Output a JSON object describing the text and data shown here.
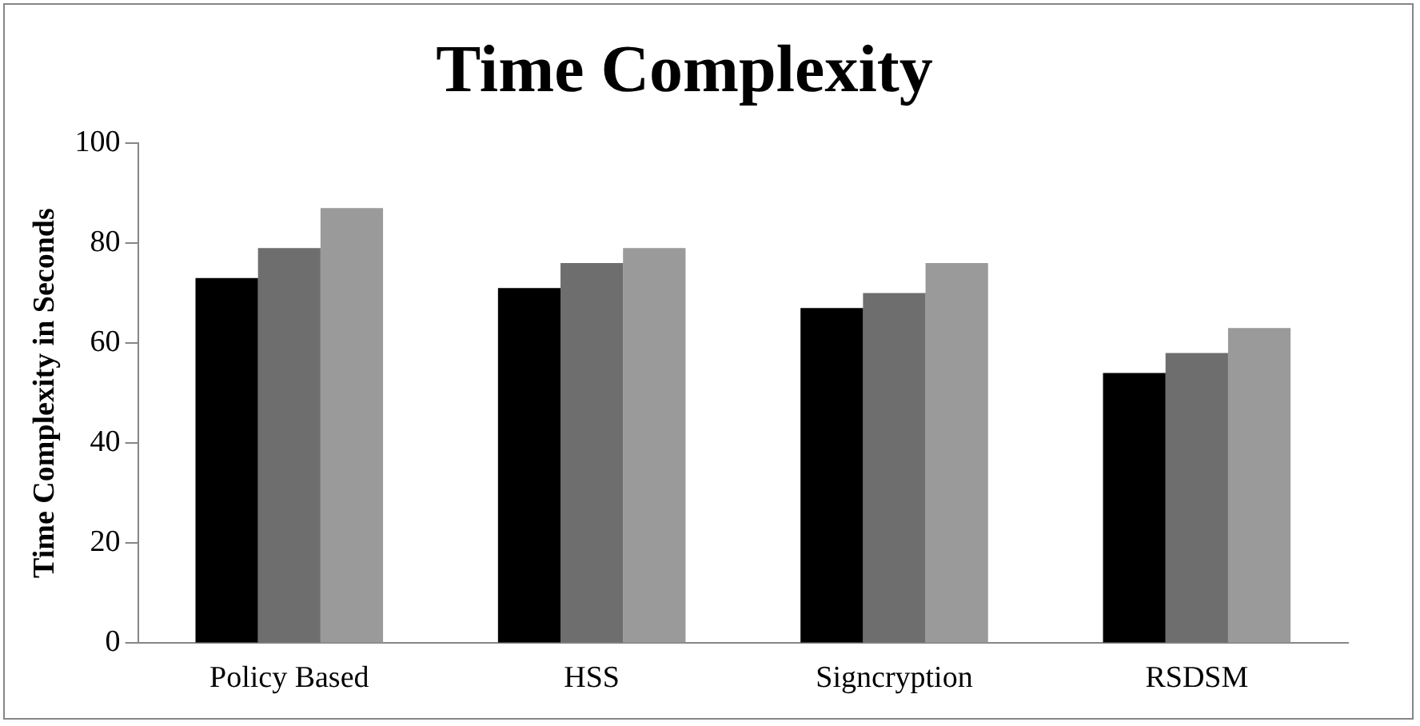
{
  "chart_data": {
    "type": "bar",
    "title": "Time Complexity",
    "ylabel": "Time Complexity in Seconds",
    "categories": [
      "Policy Based",
      "HSS",
      "Signcryption",
      "RSDSM"
    ],
    "series": [
      {
        "color": "#000000",
        "values": [
          73,
          71,
          67,
          54
        ]
      },
      {
        "color": "#6e6e6e",
        "values": [
          79,
          76,
          70,
          58
        ]
      },
      {
        "color": "#9a9a9a",
        "values": [
          87,
          79,
          76,
          63
        ]
      }
    ],
    "ylim": [
      0,
      100
    ],
    "yticks": [
      0,
      20,
      40,
      60,
      80,
      100
    ],
    "grid": false,
    "legend": false
  }
}
